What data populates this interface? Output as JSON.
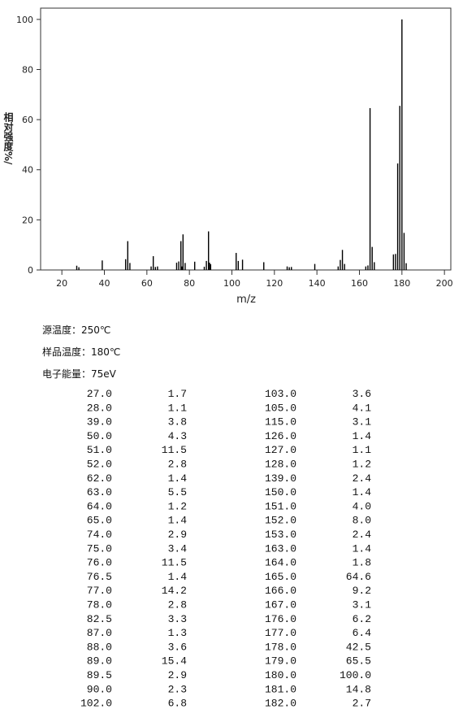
{
  "chart_data": {
    "type": "bar",
    "x_label": "m/z",
    "y_label": "相对强度%/",
    "xlim": [
      10,
      203
    ],
    "xticks": [
      20,
      40,
      60,
      80,
      100,
      120,
      140,
      160,
      180,
      200
    ],
    "ylim": [
      0,
      104.5
    ],
    "yticks": [
      0,
      20,
      40,
      60,
      80,
      100
    ],
    "color": "#000000",
    "x": [
      27,
      28,
      39,
      50,
      51,
      52,
      62,
      63,
      64,
      65,
      74,
      75,
      76,
      76.5,
      77,
      78,
      82.5,
      87,
      88,
      89,
      89.5,
      90,
      102,
      103,
      105,
      115,
      126,
      127,
      128,
      139,
      150,
      151,
      152,
      153,
      163,
      164,
      165,
      166,
      167,
      176,
      177,
      178,
      179,
      180,
      181,
      182
    ],
    "x_labels": [
      "27.0",
      "28.0",
      "39.0",
      "50.0",
      "51.0",
      "52.0",
      "62.0",
      "63.0",
      "64.0",
      "65.0",
      "74.0",
      "75.0",
      "76.0",
      "76.5",
      "77.0",
      "78.0",
      "82.5",
      "87.0",
      "88.0",
      "89.0",
      "89.5",
      "90.0",
      "102.0",
      "103.0",
      "105.0",
      "115.0",
      "126.0",
      "127.0",
      "128.0",
      "139.0",
      "150.0",
      "151.0",
      "152.0",
      "153.0",
      "163.0",
      "164.0",
      "165.0",
      "166.0",
      "167.0",
      "176.0",
      "177.0",
      "178.0",
      "179.0",
      "180.0",
      "181.0",
      "182.0"
    ],
    "values": [
      1.7,
      1.1,
      3.8,
      4.3,
      11.5,
      2.8,
      1.4,
      5.5,
      1.2,
      1.4,
      2.9,
      3.4,
      11.5,
      1.4,
      14.2,
      2.8,
      3.3,
      1.3,
      3.6,
      15.4,
      2.9,
      2.3,
      6.8,
      3.6,
      4.1,
      3.1,
      1.4,
      1.1,
      1.2,
      2.4,
      1.4,
      4.0,
      8.0,
      2.4,
      1.4,
      1.8,
      64.6,
      9.2,
      3.1,
      6.2,
      6.4,
      42.5,
      65.5,
      100.0,
      14.8,
      2.7
    ],
    "value_labels": [
      "1.7",
      "1.1",
      "3.8",
      "4.3",
      "11.5",
      "2.8",
      "1.4",
      "5.5",
      "1.2",
      "1.4",
      "2.9",
      "3.4",
      "11.5",
      "1.4",
      "14.2",
      "2.8",
      "3.3",
      "1.3",
      "3.6",
      "15.4",
      "2.9",
      "2.3",
      "6.8",
      "3.6",
      "4.1",
      "3.1",
      "1.4",
      "1.1",
      "1.2",
      "2.4",
      "1.4",
      "4.0",
      "8.0",
      "2.4",
      "1.4",
      "1.8",
      "64.6",
      "9.2",
      "3.1",
      "6.2",
      "6.4",
      "42.5",
      "65.5",
      "100.0",
      "14.8",
      "2.7"
    ]
  },
  "conditions": [
    "源温度：250℃",
    "样品温度：180℃",
    "电子能量：75eV"
  ]
}
